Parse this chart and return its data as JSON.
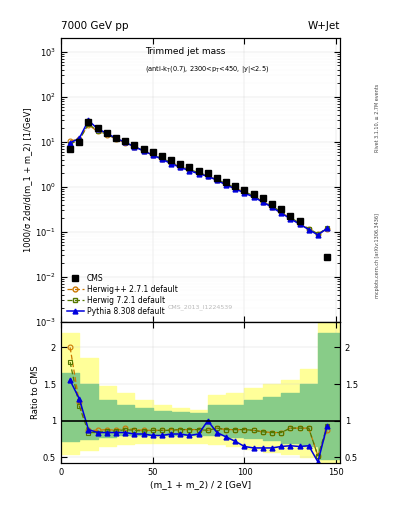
{
  "title_top": "7000 GeV pp",
  "title_right": "W+Jet",
  "plot_title": "Trimmed jet mass",
  "plot_subtitle": "(anti-k_{T}(0.7), 2300<p_{T}<450, |y|<2.5)",
  "ylabel_main": "1000/σ 2dσ/d(m_1 + m_2) [1/GeV]",
  "ylabel_ratio": "Ratio to CMS",
  "xlabel": "(m_1 + m_2) / 2 [GeV]",
  "watermark": "CMS_2013_I1224539",
  "rivet_text": "Rivet 3.1.10, ≥ 2.7M events",
  "mcplots_text": "mcplots.cern.ch [arXiv:1306.3436]",
  "xlim": [
    0,
    152
  ],
  "ylim_main": [
    0.001,
    2000.0
  ],
  "ylim_ratio": [
    0.42,
    2.35
  ],
  "cms_x": [
    5,
    10,
    15,
    20,
    25,
    30,
    35,
    40,
    45,
    50,
    55,
    60,
    65,
    70,
    75,
    80,
    85,
    90,
    95,
    100,
    105,
    110,
    115,
    120,
    125,
    130,
    145
  ],
  "cms_y": [
    7.0,
    10.0,
    28.0,
    20.0,
    16.0,
    12.5,
    10.5,
    8.5,
    7.0,
    5.8,
    4.8,
    3.9,
    3.2,
    2.8,
    2.3,
    2.0,
    1.6,
    1.3,
    1.05,
    0.85,
    0.7,
    0.55,
    0.42,
    0.32,
    0.22,
    0.17,
    0.028
  ],
  "herwigpp_x": [
    5,
    10,
    15,
    20,
    25,
    30,
    35,
    40,
    45,
    50,
    55,
    60,
    65,
    70,
    75,
    80,
    85,
    90,
    95,
    100,
    105,
    110,
    115,
    120,
    125,
    130,
    135,
    140,
    145
  ],
  "herwigpp_y": [
    10.5,
    11.5,
    24.0,
    17.0,
    14.5,
    11.5,
    9.5,
    7.7,
    6.3,
    5.1,
    4.2,
    3.4,
    2.8,
    2.4,
    2.0,
    1.75,
    1.45,
    1.15,
    0.94,
    0.76,
    0.62,
    0.47,
    0.36,
    0.27,
    0.2,
    0.15,
    0.115,
    0.088,
    0.115
  ],
  "herwig7_x": [
    5,
    10,
    15,
    20,
    25,
    30,
    35,
    40,
    45,
    50,
    55,
    60,
    65,
    70,
    75,
    80,
    85,
    90,
    95,
    100,
    105,
    110,
    115,
    120,
    125,
    130,
    135,
    140,
    145
  ],
  "herwig7_y": [
    9.0,
    11.0,
    25.0,
    17.5,
    14.8,
    11.8,
    9.7,
    7.9,
    6.4,
    5.2,
    4.3,
    3.5,
    2.85,
    2.45,
    2.05,
    1.78,
    1.47,
    1.17,
    0.96,
    0.78,
    0.63,
    0.48,
    0.37,
    0.28,
    0.21,
    0.155,
    0.118,
    0.09,
    0.12
  ],
  "pythia_x": [
    5,
    10,
    15,
    20,
    25,
    30,
    35,
    40,
    45,
    50,
    55,
    60,
    65,
    70,
    75,
    80,
    85,
    90,
    95,
    100,
    105,
    110,
    115,
    120,
    125,
    130,
    135,
    140,
    145
  ],
  "pythia_y": [
    9.5,
    12.0,
    30.0,
    19.5,
    15.5,
    12.0,
    9.8,
    7.8,
    6.3,
    5.1,
    4.1,
    3.3,
    2.7,
    2.3,
    1.95,
    1.72,
    1.4,
    1.1,
    0.9,
    0.73,
    0.59,
    0.46,
    0.35,
    0.26,
    0.195,
    0.148,
    0.112,
    0.085,
    0.12
  ],
  "ratio_herwigpp": [
    2.0,
    1.25,
    0.87,
    0.87,
    0.88,
    0.87,
    0.9,
    0.88,
    0.87,
    0.87,
    0.87,
    0.88,
    0.88,
    0.88,
    0.88,
    0.87,
    0.9,
    0.88,
    0.88,
    0.88,
    0.87,
    0.85,
    0.84,
    0.84,
    0.9,
    0.9,
    0.9,
    0.52,
    0.87
  ],
  "ratio_herwig7": [
    1.8,
    1.2,
    0.84,
    0.84,
    0.86,
    0.86,
    0.88,
    0.87,
    0.86,
    0.87,
    0.87,
    0.87,
    0.88,
    0.88,
    0.88,
    0.87,
    0.9,
    0.88,
    0.88,
    0.88,
    0.87,
    0.85,
    0.84,
    0.84,
    0.9,
    0.9,
    0.9,
    0.52,
    0.93
  ],
  "ratio_pythia": [
    1.55,
    1.3,
    0.88,
    0.84,
    0.84,
    0.84,
    0.84,
    0.82,
    0.82,
    0.8,
    0.8,
    0.82,
    0.82,
    0.8,
    0.82,
    1.0,
    0.84,
    0.78,
    0.72,
    0.65,
    0.63,
    0.63,
    0.63,
    0.65,
    0.66,
    0.65,
    0.66,
    0.44,
    0.93
  ],
  "bg_yellow_x": [
    0,
    10,
    20,
    30,
    40,
    50,
    60,
    70,
    80,
    90,
    100,
    110,
    120,
    130,
    140,
    152
  ],
  "bg_yellow_low": [
    0.55,
    0.6,
    0.65,
    0.68,
    0.7,
    0.7,
    0.7,
    0.7,
    0.68,
    0.65,
    0.62,
    0.58,
    0.55,
    0.5,
    0.44,
    0.44
  ],
  "bg_yellow_high": [
    2.2,
    1.85,
    1.48,
    1.38,
    1.28,
    1.22,
    1.18,
    1.15,
    1.35,
    1.38,
    1.45,
    1.5,
    1.55,
    1.7,
    2.5,
    2.5
  ],
  "bg_green_x": [
    0,
    10,
    20,
    30,
    40,
    50,
    60,
    70,
    80,
    90,
    100,
    110,
    120,
    130,
    140,
    152
  ],
  "bg_green_low": [
    0.72,
    0.75,
    0.78,
    0.8,
    0.8,
    0.8,
    0.8,
    0.8,
    0.8,
    0.78,
    0.76,
    0.74,
    0.7,
    0.65,
    0.48,
    0.48
  ],
  "bg_green_high": [
    1.65,
    1.5,
    1.28,
    1.22,
    1.18,
    1.14,
    1.12,
    1.1,
    1.22,
    1.22,
    1.28,
    1.32,
    1.38,
    1.5,
    2.2,
    2.2
  ],
  "cms_color": "black",
  "herwigpp_color": "#cc7700",
  "herwig7_color": "#557700",
  "pythia_color": "#0000dd",
  "yellow_color": "#ffff99",
  "green_color": "#88cc88"
}
